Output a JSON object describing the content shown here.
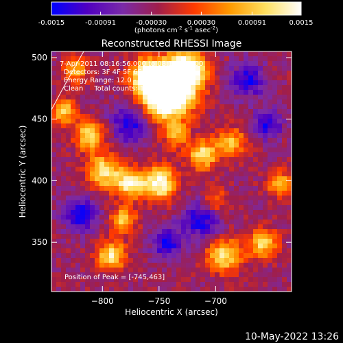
{
  "chart_data": {
    "type": "heatmap",
    "title": "Reconstructed RHESSI Image",
    "xlabel": "Heliocentric X (arcsec)",
    "ylabel": "Heliocentric Y (arcsec)",
    "xlim": [
      -845,
      -633
    ],
    "ylim": [
      310,
      505
    ],
    "x_ticks": [
      -800,
      -750,
      -700
    ],
    "y_ticks": [
      350,
      400,
      450,
      500
    ],
    "colorbar": {
      "ticks": [
        -0.0015,
        -0.00091,
        -0.0003,
        0.0003,
        0.00091,
        0.0015
      ],
      "tick_labels": [
        "-0.0015",
        "-0.00091",
        "-0.00030",
        "0.00030",
        "0.00091",
        "0.0015"
      ],
      "label": "(photons cm",
      "label_sup1": "-2",
      "label_mid": " s",
      "label_sup2": "-1",
      "label_end": " asec",
      "label_sup3": "-2",
      "label_close": ")",
      "colors": [
        "#0000ff",
        "#5000c0",
        "#7a2aa8",
        "#a01e4a",
        "#ff3a00",
        "#ff9a00",
        "#ffe060",
        "#ffffff"
      ]
    },
    "annotations": {
      "time": "7-Apr-2011 08:16:56.000 to 08:18:12.000",
      "detectors": "Detectors: 3F 4F 5F 6F 7F 8F, Att 0",
      "energy": "Energy Range: 12.0 - 25.0 keV",
      "clean": "Clean     Total counts: 1.76e+03",
      "peak": "Position of Peak = [-745,463]"
    },
    "peak": [
      -745,
      463
    ]
  },
  "footer": {
    "date": "10-May-2022 13:26"
  }
}
